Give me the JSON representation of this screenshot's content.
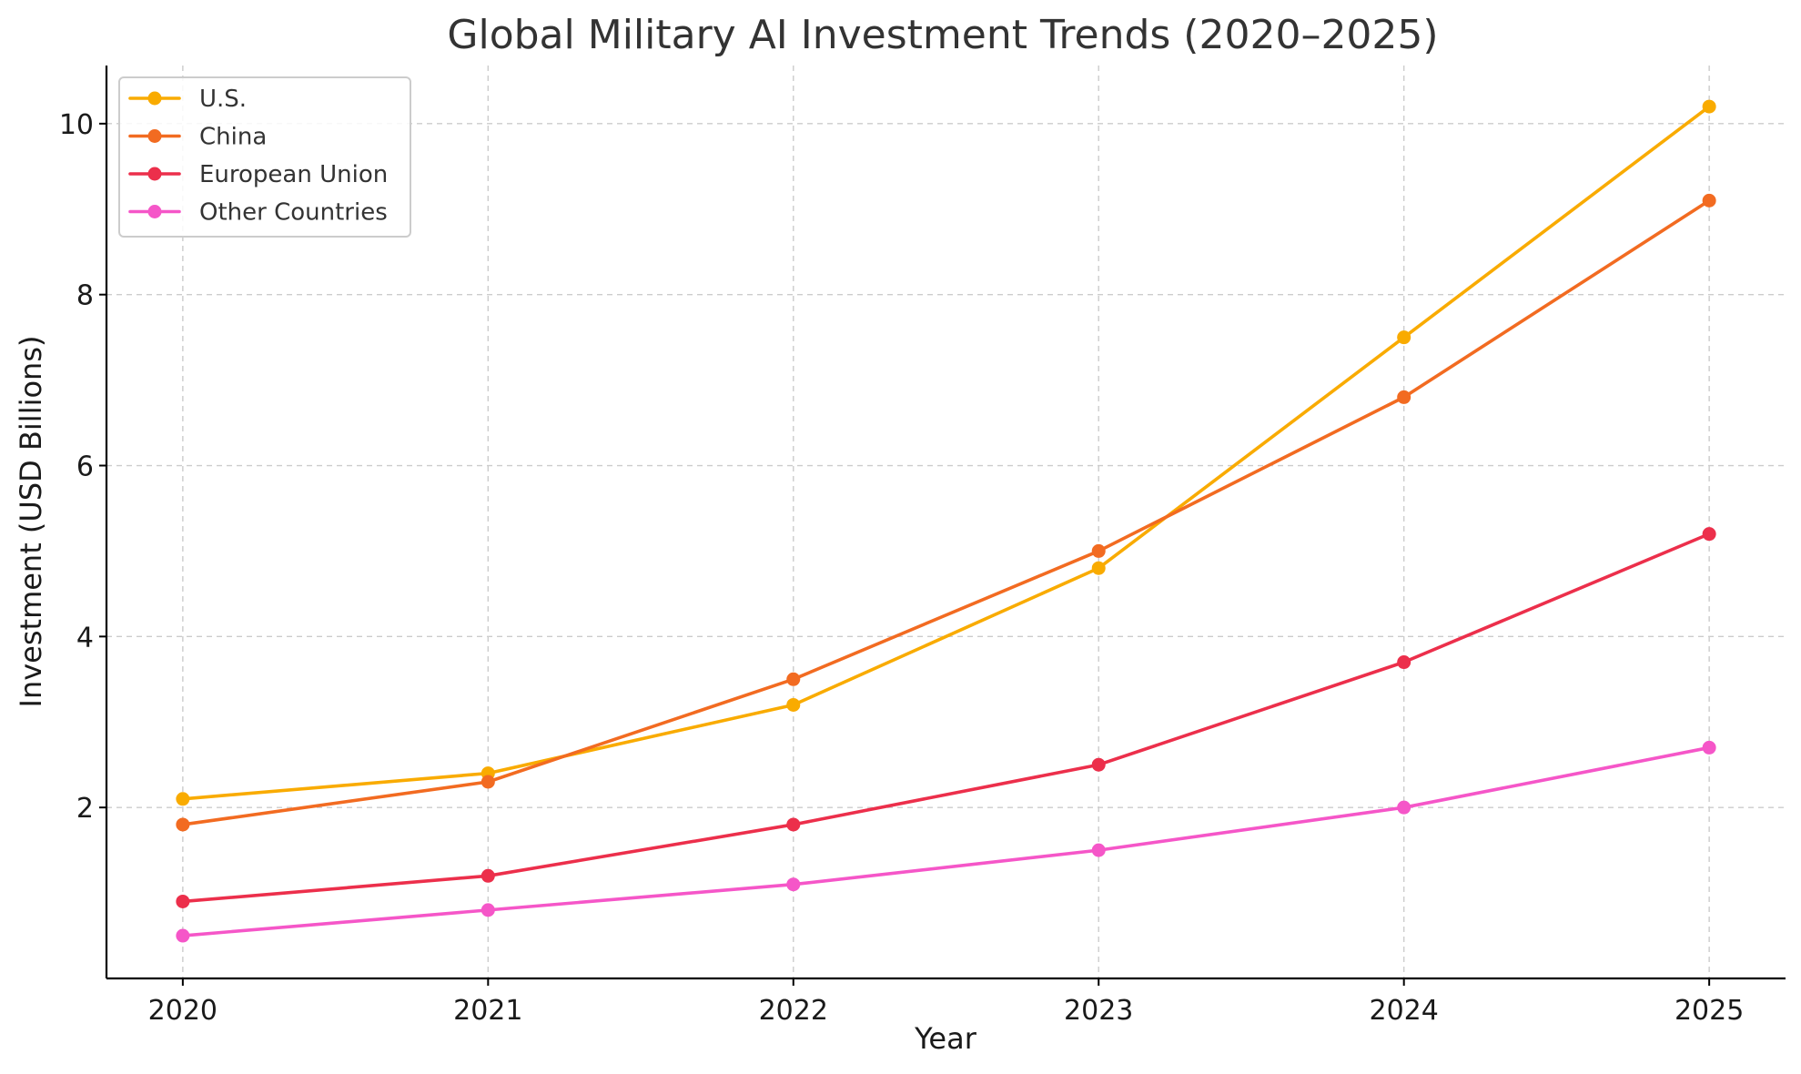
{
  "chart_data": {
    "type": "line",
    "title": "Global Military AI Investment Trends (2020–2025)",
    "xlabel": "Year",
    "ylabel": "Investment (USD Billions)",
    "categories": [
      "2020",
      "2021",
      "2022",
      "2023",
      "2024",
      "2025"
    ],
    "x": [
      2020,
      2021,
      2022,
      2023,
      2024,
      2025
    ],
    "xlim": [
      2019.75,
      2025.25
    ],
    "ylim": [
      0.0,
      10.68
    ],
    "yticks": [
      2,
      4,
      6,
      8,
      10
    ],
    "grid": true,
    "legend_position": "top-left",
    "series": [
      {
        "name": "U.S.",
        "color": "#f9ab00",
        "values": [
          2.1,
          2.4,
          3.2,
          4.8,
          7.5,
          10.2
        ]
      },
      {
        "name": "China",
        "color": "#f26b21",
        "values": [
          1.8,
          2.3,
          3.5,
          5.0,
          6.8,
          9.1
        ]
      },
      {
        "name": "European Union",
        "color": "#ec2f4b",
        "values": [
          0.9,
          1.2,
          1.8,
          2.5,
          3.7,
          5.2
        ]
      },
      {
        "name": "Other Countries",
        "color": "#f556c8",
        "values": [
          0.5,
          0.8,
          1.1,
          1.5,
          2.0,
          2.7
        ]
      }
    ]
  }
}
